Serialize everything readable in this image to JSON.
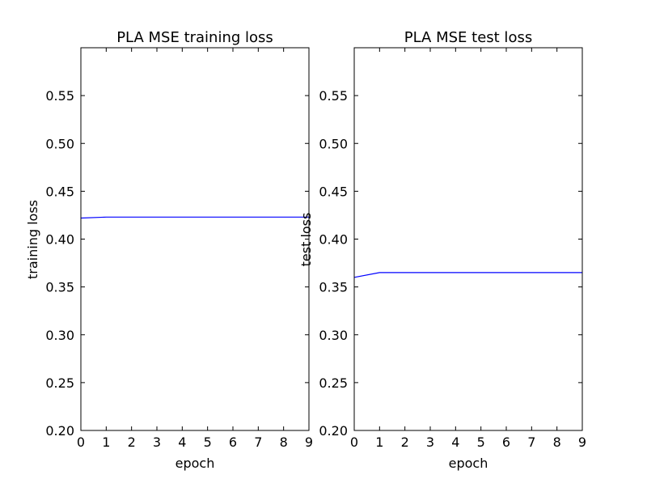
{
  "chart_data": [
    {
      "type": "line",
      "title": "PLA MSE training loss",
      "xlabel": "epoch",
      "ylabel": "training loss",
      "xlim": [
        0,
        9
      ],
      "ylim": [
        0.2,
        0.6
      ],
      "xticks": [
        0,
        1,
        2,
        3,
        4,
        5,
        6,
        7,
        8,
        9
      ],
      "yticks": [
        0.2,
        0.25,
        0.3,
        0.35,
        0.4,
        0.45,
        0.5,
        0.55
      ],
      "ytick_labels": [
        "0.20",
        "0.25",
        "0.30",
        "0.35",
        "0.40",
        "0.45",
        "0.50",
        "0.55"
      ],
      "grid": false,
      "series": [
        {
          "color": "#0000ff",
          "x": [
            0,
            1,
            2,
            3,
            4,
            5,
            6,
            7,
            8,
            9
          ],
          "y": [
            0.422,
            0.423,
            0.423,
            0.423,
            0.423,
            0.423,
            0.423,
            0.423,
            0.423,
            0.423
          ]
        }
      ]
    },
    {
      "type": "line",
      "title": "PLA MSE test loss",
      "xlabel": "epoch",
      "ylabel": "test loss",
      "xlim": [
        0,
        9
      ],
      "ylim": [
        0.2,
        0.6
      ],
      "xticks": [
        0,
        1,
        2,
        3,
        4,
        5,
        6,
        7,
        8,
        9
      ],
      "yticks": [
        0.2,
        0.25,
        0.3,
        0.35,
        0.4,
        0.45,
        0.5,
        0.55
      ],
      "ytick_labels": [
        "0.20",
        "0.25",
        "0.30",
        "0.35",
        "0.40",
        "0.45",
        "0.50",
        "0.55"
      ],
      "grid": false,
      "series": [
        {
          "color": "#0000ff",
          "x": [
            0,
            1,
            2,
            3,
            4,
            5,
            6,
            7,
            8,
            9
          ],
          "y": [
            0.36,
            0.365,
            0.365,
            0.365,
            0.365,
            0.365,
            0.365,
            0.365,
            0.365,
            0.365
          ]
        }
      ]
    }
  ]
}
